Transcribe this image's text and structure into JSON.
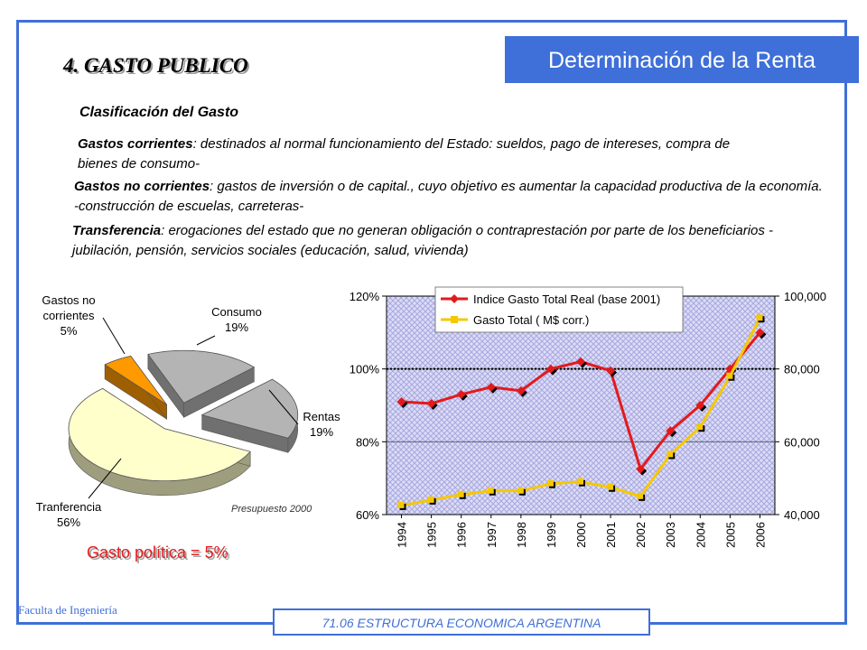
{
  "banner_title": "Determinación de la Renta",
  "section_title": "4. GASTO PUBLICO",
  "subheading": "Clasificación del Gasto",
  "paragraphs": [
    {
      "term": "Gastos corrientes",
      "text": ": destinados al normal funcionamiento del Estado: sueldos, pago de intereses, compra de bienes de consumo-"
    },
    {
      "term": "Gastos no corrientes",
      "text": ": gastos de inversión o de capital., cuyo objetivo es aumentar la capacidad productiva de la economía. -construcción de escuelas, carreteras-"
    },
    {
      "term": "Transferencia",
      "text": ": erogaciones del estado que no generan obligación o contraprestación por parte de los beneficiarios -jubilación, pensión, servicios sociales (educación, salud, vivienda)"
    }
  ],
  "gasto_politica": "Gasto política = 5%",
  "footer_left": "Faculta de Ingeniería",
  "footer_center": "71.06 ESTRUCTURA ECONOMICA ARGENTINA",
  "colors": {
    "accent": "#3f6fd8",
    "red_series": "#e31a1c",
    "yellow_series": "#f6c800",
    "plot_bg": "#c8c8f0"
  },
  "chart_data": [
    {
      "type": "pie",
      "note": "Presupuesto 2000",
      "slices": [
        {
          "label": "Consumo",
          "pct_label": "19%",
          "value": 19,
          "color": "#b4b4b4"
        },
        {
          "label": "Rentas",
          "pct_label": "19%",
          "value": 19,
          "color": "#b4b4b4"
        },
        {
          "label": "Tranferencia",
          "pct_label": "56%",
          "value": 56,
          "color": "#ffffcc"
        },
        {
          "label": "Gastos no corrientes",
          "pct_label": "5%",
          "value": 5,
          "color": "#ff9900"
        }
      ]
    },
    {
      "type": "line",
      "x": [
        "1994",
        "1995",
        "1996",
        "1997",
        "1998",
        "1999",
        "2000",
        "2001",
        "2002",
        "2003",
        "2004",
        "2005",
        "2006"
      ],
      "series": [
        {
          "name": "Indice Gasto Total Real (base 2001)",
          "axis": "left",
          "color": "#e31a1c",
          "values": [
            91,
            90.5,
            93,
            95,
            94,
            100,
            102,
            99.5,
            72.5,
            83,
            90,
            100,
            110
          ]
        },
        {
          "name": "Gasto Total ( M$ corr.)",
          "axis": "right",
          "color": "#f6c800",
          "values": [
            42.5,
            44,
            45.5,
            46.5,
            46.5,
            48.5,
            49,
            47.5,
            45,
            56.5,
            64,
            78,
            94
          ]
        }
      ],
      "y_left": {
        "ylim": [
          60,
          120
        ],
        "ticks": [
          60,
          80,
          100,
          120
        ],
        "tick_labels": [
          "60%",
          "80%",
          "100%",
          "120%"
        ]
      },
      "y_right": {
        "ylim": [
          40000,
          100000
        ],
        "ticks": [
          40000,
          60000,
          80000,
          100000
        ],
        "tick_labels": [
          "40,000",
          "60,000",
          "80,000",
          "100,000"
        ]
      },
      "reference_line": 100,
      "legend": "top-left",
      "grid": true
    }
  ]
}
